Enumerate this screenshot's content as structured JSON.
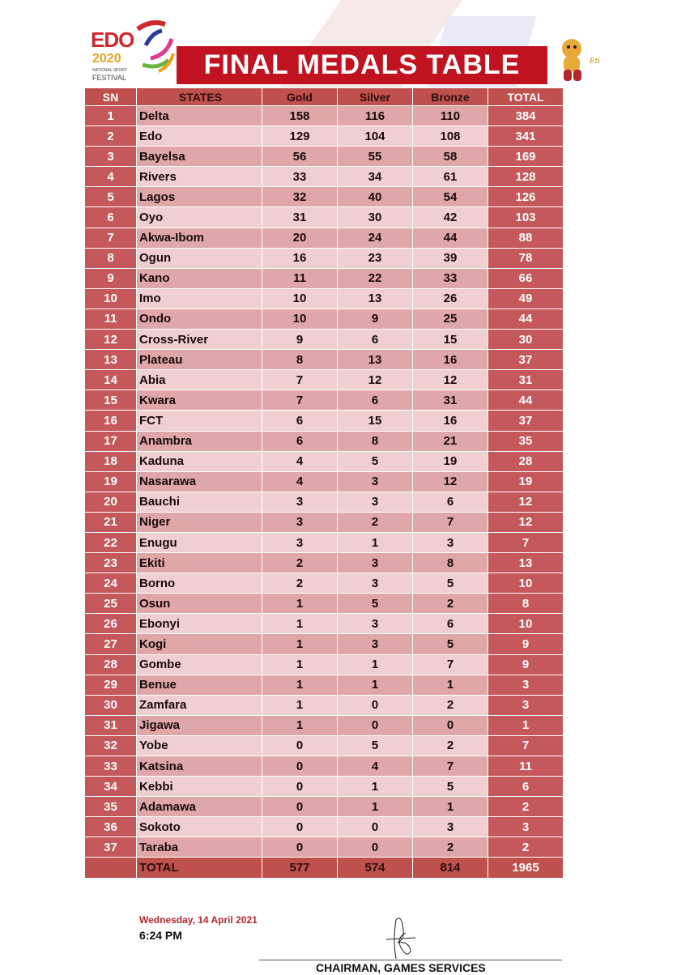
{
  "logo": {
    "brand": "EDO",
    "year": "2020",
    "subtitle": "NATIONAL SPORT",
    "subtitle2": "FESTIVAL"
  },
  "title": "FINAL MEDALS TABLE",
  "mascot": {
    "name": "Eti"
  },
  "colors": {
    "title_bg": "#c1121f",
    "header_bg": "#c0504d",
    "row_odd": "#dfa7a8",
    "row_even": "#efcfcf"
  },
  "table": {
    "headers": [
      "SN",
      "STATES",
      "Gold",
      "Silver",
      "Bronze",
      "TOTAL"
    ],
    "rows": [
      [
        "1",
        "Delta",
        "158",
        "116",
        "110",
        "384"
      ],
      [
        "2",
        "Edo",
        "129",
        "104",
        "108",
        "341"
      ],
      [
        "3",
        "Bayelsa",
        "56",
        "55",
        "58",
        "169"
      ],
      [
        "4",
        "Rivers",
        "33",
        "34",
        "61",
        "128"
      ],
      [
        "5",
        "Lagos",
        "32",
        "40",
        "54",
        "126"
      ],
      [
        "6",
        "Oyo",
        "31",
        "30",
        "42",
        "103"
      ],
      [
        "7",
        "Akwa-Ibom",
        "20",
        "24",
        "44",
        "88"
      ],
      [
        "8",
        "Ogun",
        "16",
        "23",
        "39",
        "78"
      ],
      [
        "9",
        "Kano",
        "11",
        "22",
        "33",
        "66"
      ],
      [
        "10",
        "Imo",
        "10",
        "13",
        "26",
        "49"
      ],
      [
        "11",
        "Ondo",
        "10",
        "9",
        "25",
        "44"
      ],
      [
        "12",
        "Cross-River",
        "9",
        "6",
        "15",
        "30"
      ],
      [
        "13",
        "Plateau",
        "8",
        "13",
        "16",
        "37"
      ],
      [
        "14",
        "Abia",
        "7",
        "12",
        "12",
        "31"
      ],
      [
        "15",
        "Kwara",
        "7",
        "6",
        "31",
        "44"
      ],
      [
        "16",
        "FCT",
        "6",
        "15",
        "16",
        "37"
      ],
      [
        "17",
        "Anambra",
        "6",
        "8",
        "21",
        "35"
      ],
      [
        "18",
        "Kaduna",
        "4",
        "5",
        "19",
        "28"
      ],
      [
        "19",
        "Nasarawa",
        "4",
        "3",
        "12",
        "19"
      ],
      [
        "20",
        "Bauchi",
        "3",
        "3",
        "6",
        "12"
      ],
      [
        "21",
        "Niger",
        "3",
        "2",
        "7",
        "12"
      ],
      [
        "22",
        "Enugu",
        "3",
        "1",
        "3",
        "7"
      ],
      [
        "23",
        "Ekiti",
        "2",
        "3",
        "8",
        "13"
      ],
      [
        "24",
        "Borno",
        "2",
        "3",
        "5",
        "10"
      ],
      [
        "25",
        "Osun",
        "1",
        "5",
        "2",
        "8"
      ],
      [
        "26",
        "Ebonyi",
        "1",
        "3",
        "6",
        "10"
      ],
      [
        "27",
        "Kogi",
        "1",
        "3",
        "5",
        "9"
      ],
      [
        "28",
        "Gombe",
        "1",
        "1",
        "7",
        "9"
      ],
      [
        "29",
        "Benue",
        "1",
        "1",
        "1",
        "3"
      ],
      [
        "30",
        "Zamfara",
        "1",
        "0",
        "2",
        "3"
      ],
      [
        "31",
        "Jigawa",
        "1",
        "0",
        "0",
        "1"
      ],
      [
        "32",
        "Yobe",
        "0",
        "5",
        "2",
        "7"
      ],
      [
        "33",
        "Katsina",
        "0",
        "4",
        "7",
        "11"
      ],
      [
        "34",
        "Kebbi",
        "0",
        "1",
        "5",
        "6"
      ],
      [
        "35",
        "Adamawa",
        "0",
        "1",
        "1",
        "2"
      ],
      [
        "36",
        "Sokoto",
        "0",
        "0",
        "3",
        "3"
      ],
      [
        "37",
        "Taraba",
        "0",
        "0",
        "2",
        "2"
      ]
    ],
    "total": [
      "",
      "TOTAL",
      "577",
      "574",
      "814",
      "1965"
    ]
  },
  "footer": {
    "date": "Wednesday, 14 April 2021",
    "time": "6:24 PM",
    "signatory": "CHAIRMAN, GAMES SERVICES"
  }
}
